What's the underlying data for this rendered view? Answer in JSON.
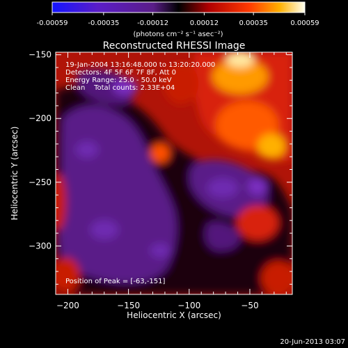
{
  "chart_data": {
    "type": "heatmap",
    "title": "Reconstructed RHESSI Image",
    "xlabel": "Heliocentric X (arcsec)",
    "ylabel": "Heliocentric Y (arcsec)",
    "xlim": [
      -210,
      -15
    ],
    "ylim": [
      -338,
      -148
    ],
    "xticks": [
      -200,
      -150,
      -100,
      -50
    ],
    "yticks": [
      -150,
      -200,
      -250,
      -300
    ],
    "colorbar": {
      "range": [
        -0.00059,
        0.00059
      ],
      "ticks": [
        -0.00059,
        -0.00035,
        -0.00012,
        0.00012,
        0.00035,
        0.00059
      ],
      "tick_labels": [
        "-0.00059",
        "-0.00035",
        "-0.00012",
        "0.00012",
        "0.00035",
        "0.00059"
      ],
      "units_label": "(photons cm⁻² s⁻¹ asec⁻²)"
    },
    "annotations": [
      "19-Jan-2004 13:16:48.000 to 13:20:20.000",
      "Detectors: 4F 5F 6F 7F 8F, Att 0",
      "Energy Range: 25.0 - 50.0 keV",
      "Clean    Total counts: 2.33E+04"
    ],
    "peak_label": "Position of Peak = [-63,-151]",
    "footer_date": "20-Jun-2013 03:07"
  }
}
